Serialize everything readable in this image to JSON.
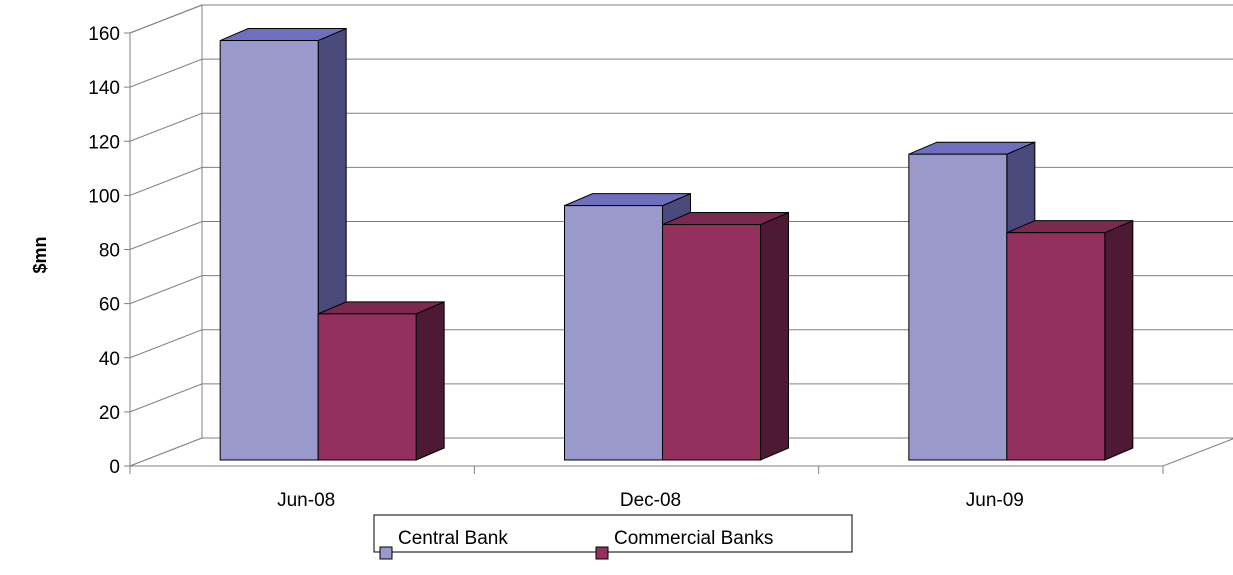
{
  "chart_data": {
    "type": "bar",
    "three_d": true,
    "title": "",
    "xlabel": "",
    "ylabel": "$mn",
    "ylim": [
      0,
      160
    ],
    "yticks": [
      0,
      20,
      40,
      60,
      80,
      100,
      120,
      140,
      160
    ],
    "grid": true,
    "legend_position": "bottom",
    "categories": [
      "Jun-08",
      "Dec-08",
      "Jun-09"
    ],
    "series": [
      {
        "name": "Central Bank",
        "values": [
          155,
          94,
          113
        ],
        "color": "#9999cc",
        "top_color": "#6f6fbf",
        "side_color": "#4a4a7c"
      },
      {
        "name": "Commercial Banks",
        "values": [
          54,
          87,
          84
        ],
        "color": "#93305e",
        "top_color": "#7a2a4f",
        "side_color": "#4e1934"
      }
    ]
  }
}
